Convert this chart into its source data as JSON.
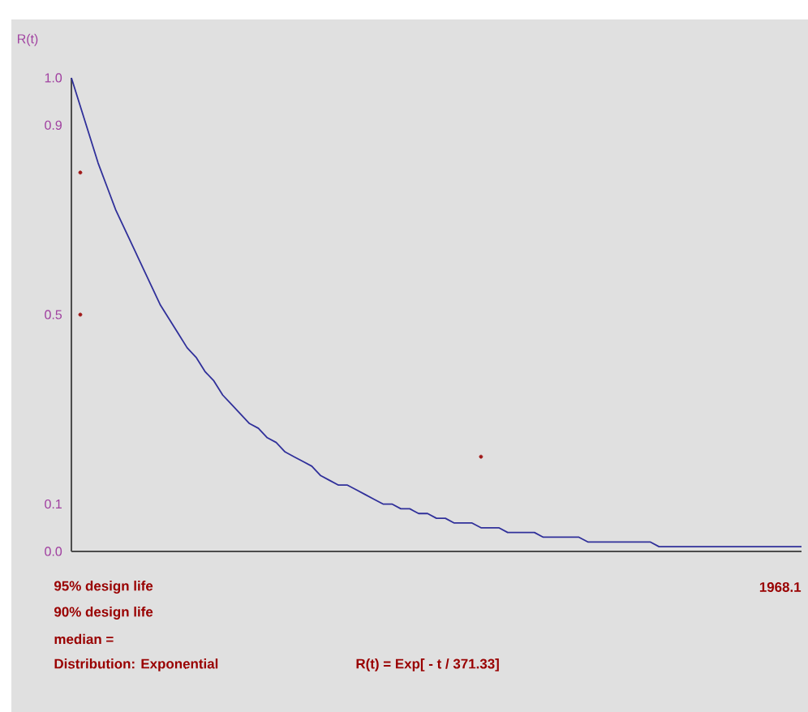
{
  "chart_data": {
    "type": "line",
    "ylabel": "R(t)",
    "ylim": [
      0,
      1.0
    ],
    "categories": [
      null,
      null,
      null,
      null,
      null,
      null,
      null,
      null,
      null,
      null,
      null,
      null,
      null,
      null,
      null,
      null,
      null,
      null,
      null,
      null,
      null,
      null,
      null,
      null,
      null,
      null,
      null,
      null,
      null,
      null,
      null,
      null,
      null,
      null,
      null,
      null,
      null,
      null,
      null,
      null,
      null,
      null,
      null,
      null,
      null,
      null,
      null,
      null,
      null,
      null,
      null,
      null,
      null,
      null,
      null,
      null,
      null,
      null,
      null,
      null,
      null,
      null,
      null,
      null,
      null,
      null,
      null,
      null,
      null,
      null,
      null,
      null,
      null,
      null,
      null,
      null,
      null,
      null,
      null,
      null,
      null,
      null,
      null
    ],
    "yticks": [
      {
        "value": 0,
        "label": "0.0"
      },
      {
        "value": 0.1,
        "label": "0.1"
      },
      {
        "value": 0.5,
        "label": "0.5"
      },
      {
        "value": 0.9,
        "label": "0.9"
      },
      {
        "value": 1,
        "label": "1.0"
      }
    ],
    "annotations": [
      "95% design life",
      "90% design life",
      "median =",
      "Distribution: Exponential",
      "R(t) = Exp[ - t / 371.33]",
      "1968.1"
    ],
    "series": [
      {
        "color": "#30309a",
        "marker": "none",
        "values": [
          1.0,
          0.94,
          0.88,
          0.82,
          0.77,
          0.72,
          0.68,
          0.64,
          0.6,
          0.56,
          0.52,
          0.49,
          0.46,
          0.43,
          0.41,
          0.38,
          0.36,
          0.33,
          0.31,
          0.29,
          0.27,
          0.26,
          0.24,
          0.23,
          0.21,
          0.2,
          0.19,
          0.18,
          0.16,
          0.15,
          0.14,
          0.14,
          0.13,
          0.12,
          0.11,
          0.1,
          0.1,
          0.09,
          0.09,
          0.08,
          0.08,
          0.07,
          0.07,
          0.06,
          0.06,
          0.06,
          0.05,
          0.05,
          0.05,
          0.04,
          0.04,
          0.04,
          0.04,
          0.03,
          0.03,
          0.03,
          0.03,
          0.03,
          0.02,
          0.02,
          0.02,
          0.02,
          0.02,
          0.02,
          0.02,
          0.02,
          0.01,
          0.01,
          0.01,
          0.01,
          0.01,
          0.01,
          0.01,
          0.01,
          0.01,
          0.01,
          0.01,
          0.01,
          0.01,
          0.01,
          0.01,
          0.01,
          0.01
        ]
      },
      {
        "type": "scatter",
        "color": "#a01818",
        "marker": "circle",
        "values": [
          null,
          0.8,
          null,
          null,
          null,
          null,
          null,
          null,
          null,
          null,
          null,
          null,
          null,
          null,
          null,
          null,
          null,
          null,
          null,
          null,
          null,
          null,
          null,
          null,
          null,
          null,
          null,
          null,
          null,
          null,
          null,
          null,
          null,
          null,
          null,
          null,
          null,
          null,
          null,
          null,
          null,
          null,
          null,
          null,
          null,
          null,
          0.2,
          null,
          null,
          null,
          null,
          null,
          null,
          null,
          null,
          null,
          null,
          null,
          null,
          null,
          null,
          null,
          null,
          null,
          null,
          null,
          null,
          null,
          null,
          null,
          null,
          null,
          null,
          null,
          null,
          null,
          null,
          null,
          null,
          null,
          null,
          null,
          null
        ]
      },
      {
        "type": "scatter",
        "color": "#a01818",
        "marker": "circle",
        "values": [
          null,
          0.5,
          null,
          null,
          null,
          null,
          null,
          null,
          null,
          null,
          null,
          null,
          null,
          null,
          null,
          null,
          null,
          null,
          null,
          null,
          null,
          null,
          null,
          null,
          null,
          null,
          null,
          null,
          null,
          null,
          null,
          null,
          null,
          null,
          null,
          null,
          null,
          null,
          null,
          null,
          null,
          null,
          null,
          null,
          null,
          null,
          null,
          null,
          null,
          null,
          null,
          null,
          null,
          null,
          null,
          null,
          null,
          null,
          null,
          null,
          null,
          null,
          null,
          null,
          null,
          null,
          null,
          null,
          null,
          null,
          null,
          null,
          null,
          null,
          null,
          null,
          null,
          null,
          null,
          null,
          null,
          null,
          null
        ]
      }
    ]
  }
}
